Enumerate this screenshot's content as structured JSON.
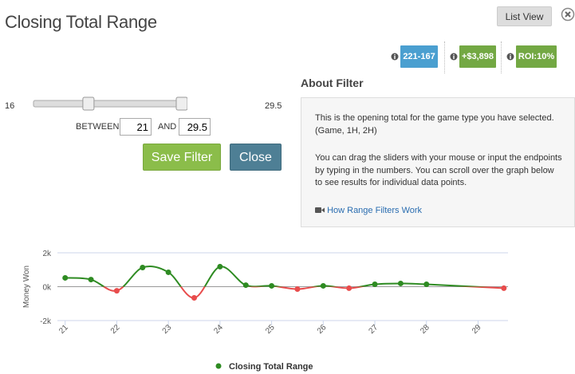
{
  "header": {
    "title": "Closing Total Range",
    "list_view": "List View"
  },
  "stats": [
    {
      "label": "221-167",
      "color": "#4a9fd0"
    },
    {
      "label": "+$3,898",
      "color": "#73a843"
    },
    {
      "label": "ROI:10%",
      "color": "#73a843"
    }
  ],
  "slider": {
    "min": 16,
    "max": 29.5,
    "low": 21,
    "high": 29.5,
    "between": "BETWEEN",
    "and": "AND"
  },
  "buttons": {
    "save": "Save Filter",
    "close": "Close"
  },
  "about": {
    "heading": "About Filter",
    "paragraphs": [
      "This is the opening total for the game type you have selected. (Game, 1H, 2H)",
      "You can drag the sliders with your mouse or input the endpoints by typing in the numbers.  You can scroll over the graph below to see results for individual data points."
    ],
    "link": "How Range Filters Work"
  },
  "chart_data": {
    "type": "line",
    "y_label": "Money Won",
    "x": [
      21,
      21.5,
      22,
      22.5,
      23,
      23.5,
      24,
      24.5,
      25,
      25.5,
      26,
      26.5,
      27,
      27.5,
      28,
      29.5
    ],
    "series": [
      {
        "name": "Closing Total Range",
        "color": "#2e8b22",
        "negative_color": "#e84c4c",
        "values": [
          520,
          420,
          -240,
          1130,
          850,
          -660,
          1180,
          90,
          50,
          -140,
          50,
          -90,
          140,
          190,
          140,
          -90
        ]
      }
    ],
    "xlim": [
      20.85,
      29.58
    ],
    "xticks": [
      21,
      22,
      23,
      24,
      25,
      26,
      27,
      28,
      29
    ],
    "ylim": [
      -2000,
      2000
    ],
    "yticks": [
      {
        "value": -2000,
        "label": "-2k"
      },
      {
        "value": 0,
        "label": "0k"
      },
      {
        "value": 2000,
        "label": "2k"
      }
    ],
    "grid": true
  }
}
